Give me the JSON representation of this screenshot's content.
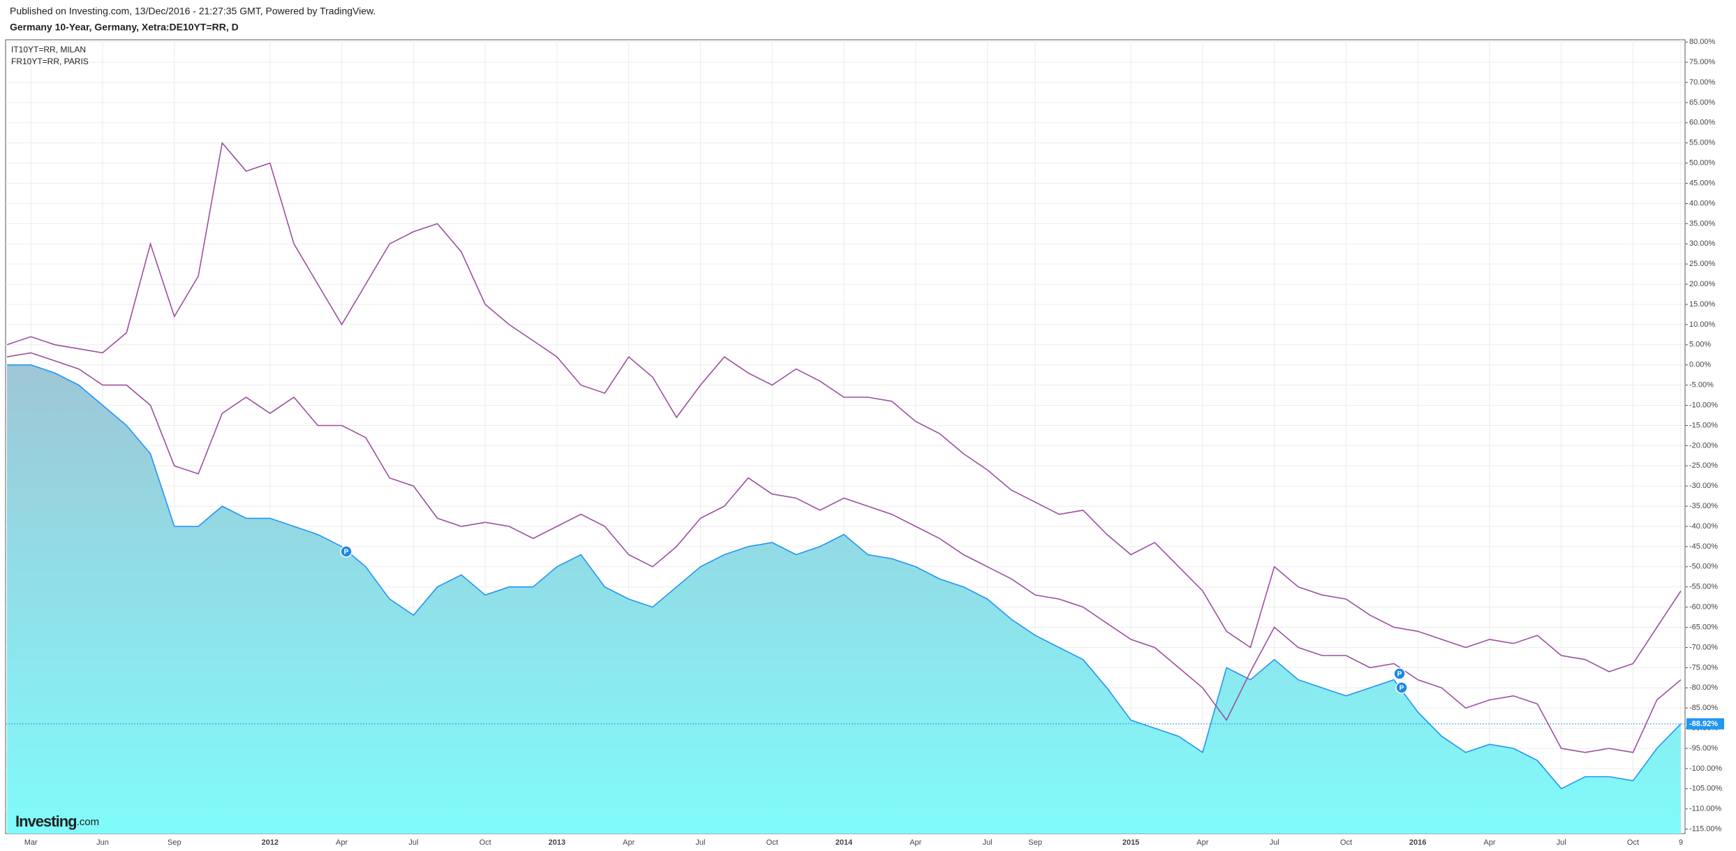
{
  "chart_data": {
    "type": "line",
    "publisher": "Published on Investing.com, 13/Dec/2016 - 21:27:35 GMT, Powered by TradingView.",
    "title": "Germany 10-Year, Germany, Xetra:DE10YT=RR, D",
    "logo": "Investing",
    "logo_suffix": ".com",
    "event_markers": [
      "P",
      "P",
      "P"
    ],
    "categories": [
      null,
      "Mar",
      null,
      null,
      "Jun",
      null,
      null,
      "Sep",
      null,
      null,
      null,
      "2012",
      null,
      null,
      "Apr",
      null,
      null,
      "Jul",
      null,
      null,
      "Oct",
      null,
      null,
      "2013",
      null,
      null,
      "Apr",
      null,
      null,
      "Jul",
      null,
      null,
      "Oct",
      null,
      null,
      "2014",
      null,
      null,
      "Apr",
      null,
      null,
      "Jul",
      null,
      "Sep",
      null,
      null,
      null,
      "2015",
      null,
      null,
      "Apr",
      null,
      null,
      "Jul",
      null,
      null,
      "Oct",
      null,
      null,
      "2016",
      null,
      null,
      "Apr",
      null,
      null,
      "Jul",
      null,
      null,
      "Oct",
      null,
      "9"
    ],
    "series": [
      {
        "color": "#2196f3",
        "area": true,
        "values": [
          0,
          0,
          -2,
          -5,
          -10,
          -15,
          -22,
          -40,
          -40,
          -35,
          -38,
          -38,
          -40,
          -42,
          -45,
          -50,
          -58,
          -62,
          -55,
          -52,
          -57,
          -55,
          -55,
          -50,
          -47,
          -55,
          -58,
          -60,
          -55,
          -50,
          -47,
          -45,
          -44,
          -47,
          -45,
          -42,
          -47,
          -48,
          -50,
          -53,
          -55,
          -58,
          -63,
          -67,
          -70,
          -73,
          -80,
          -88,
          -90,
          -92,
          -96,
          -75,
          -78,
          -73,
          -78,
          -80,
          -82,
          -80,
          -78,
          -86,
          -92,
          -96,
          -94,
          -95,
          -98,
          -105,
          -102,
          -102,
          -103,
          -95,
          -88.92
        ]
      },
      {
        "name": "IT10YT=RR, MILAN",
        "color": "#9c4fa0",
        "values": [
          5,
          7,
          5,
          4,
          3,
          8,
          30,
          12,
          22,
          55,
          48,
          50,
          30,
          20,
          10,
          20,
          30,
          33,
          35,
          28,
          15,
          10,
          6,
          2,
          -5,
          -7,
          2,
          -3,
          -13,
          -5,
          2,
          -2,
          -5,
          -1,
          -4,
          -8,
          -8,
          -9,
          -14,
          -17,
          -22,
          -26,
          -31,
          -34,
          -37,
          -36,
          -42,
          -47,
          -44,
          -50,
          -56,
          -66,
          -70,
          -50,
          -55,
          -57,
          -58,
          -62,
          -65,
          -66,
          -68,
          -70,
          -68,
          -69,
          -67,
          -72,
          -73,
          -76,
          -74,
          -65,
          -56
        ]
      },
      {
        "name": "FR10YT=RR, PARIS",
        "color": "#9c4fa0",
        "values": [
          2,
          3,
          1,
          -1,
          -5,
          -5,
          -10,
          -25,
          -27,
          -12,
          -8,
          -12,
          -8,
          -15,
          -15,
          -18,
          -28,
          -30,
          -38,
          -40,
          -39,
          -40,
          -43,
          -40,
          -37,
          -40,
          -47,
          -50,
          -45,
          -38,
          -35,
          -28,
          -32,
          -33,
          -36,
          -33,
          -35,
          -37,
          -40,
          -43,
          -47,
          -50,
          -53,
          -57,
          -58,
          -60,
          -64,
          -68,
          -70,
          -75,
          -80,
          -88,
          -76,
          -65,
          -70,
          -72,
          -72,
          -75,
          -74,
          -78,
          -80,
          -85,
          -83,
          -82,
          -84,
          -95,
          -96,
          -95,
          -96,
          -83,
          -78
        ]
      }
    ],
    "last_value": {
      "value": -88.92,
      "label": "-88.92%"
    },
    "ylim": [
      -116.1,
      80.55
    ],
    "yticks": [
      {
        "value": 80,
        "label": "80.00%"
      },
      {
        "value": 75,
        "label": "75.00%"
      },
      {
        "value": 70,
        "label": "70.00%"
      },
      {
        "value": 65,
        "label": "65.00%"
      },
      {
        "value": 60,
        "label": "60.00%"
      },
      {
        "value": 55,
        "label": "55.00%"
      },
      {
        "value": 50,
        "label": "50.00%"
      },
      {
        "value": 45,
        "label": "45.00%"
      },
      {
        "value": 40,
        "label": "40.00%"
      },
      {
        "value": 35,
        "label": "35.00%"
      },
      {
        "value": 30,
        "label": "30.00%"
      },
      {
        "value": 25,
        "label": "25.00%"
      },
      {
        "value": 20,
        "label": "20.00%"
      },
      {
        "value": 15,
        "label": "15.00%"
      },
      {
        "value": 10,
        "label": "10.00%"
      },
      {
        "value": 5,
        "label": "5.00%"
      },
      {
        "value": 0,
        "label": "0.00%"
      },
      {
        "value": -5,
        "label": "-5.00%"
      },
      {
        "value": -10,
        "label": "-10.00%"
      },
      {
        "value": -15,
        "label": "-15.00%"
      },
      {
        "value": -20,
        "label": "-20.00%"
      },
      {
        "value": -25,
        "label": "-25.00%"
      },
      {
        "value": -30,
        "label": "-30.00%"
      },
      {
        "value": -35,
        "label": "-35.00%"
      },
      {
        "value": -40,
        "label": "-40.00%"
      },
      {
        "value": -45,
        "label": "-45.00%"
      },
      {
        "value": -50,
        "label": "-50.00%"
      },
      {
        "value": -55,
        "label": "-55.00%"
      },
      {
        "value": -60,
        "label": "-60.00%"
      },
      {
        "value": -65,
        "label": "-65.00%"
      },
      {
        "value": -70,
        "label": "-70.00%"
      },
      {
        "value": -75,
        "label": "-75.00%"
      },
      {
        "value": -80,
        "label": "-80.00%"
      },
      {
        "value": -85,
        "label": "-85.00%"
      },
      {
        "value": -90,
        "label": "-90.00%"
      },
      {
        "value": -95,
        "label": "-95.00%"
      },
      {
        "value": -100,
        "label": "-100.00%"
      },
      {
        "value": -105,
        "label": "-105.00%"
      },
      {
        "value": -110,
        "label": "-110.00%"
      },
      {
        "value": -115,
        "label": "-115.00%"
      }
    ],
    "grid": true
  }
}
